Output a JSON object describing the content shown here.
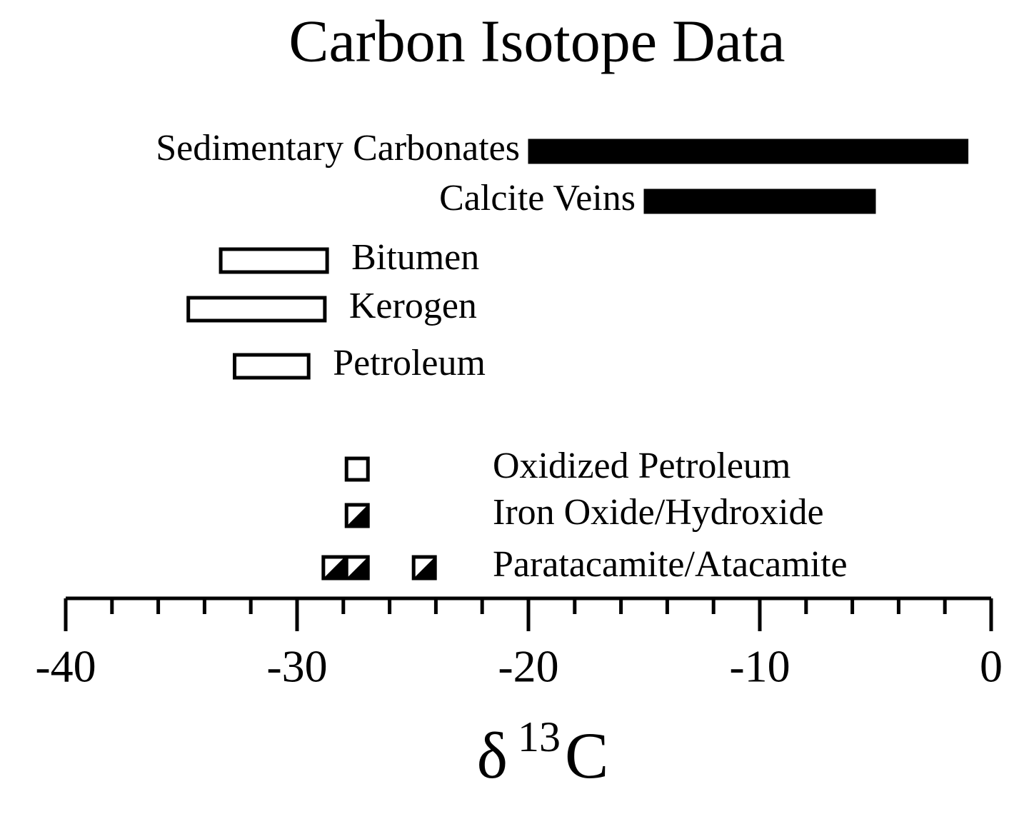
{
  "chart_data": {
    "type": "range",
    "title": "Carbon Isotope Data",
    "xlabel": [
      "δ",
      "13",
      "C"
    ],
    "xlim": [
      -40,
      0
    ],
    "xticks": [
      -40,
      -30,
      -20,
      -10,
      0
    ],
    "xminorticks": [
      -38,
      -36,
      -34,
      -32,
      -28,
      -26,
      -24,
      -22,
      -18,
      -16,
      -14,
      -12,
      -8,
      -6,
      -4,
      -2
    ],
    "ranges": [
      {
        "name": "Sedimentary Carbonates",
        "values": [
          -20,
          -1
        ],
        "fill": "#000000"
      },
      {
        "name": "Calcite Veins",
        "values": [
          -15,
          -5
        ],
        "fill": "#000000"
      },
      {
        "name": "Bitumen",
        "values": [
          -33.3,
          -28.7
        ],
        "fill": "none"
      },
      {
        "name": "Kerogen",
        "values": [
          -34.7,
          -28.8
        ],
        "fill": "none"
      },
      {
        "name": "Petroleum",
        "values": [
          -32.7,
          -29.5
        ],
        "fill": "none"
      }
    ],
    "points": [
      {
        "name": "Oxidized Petroleum",
        "values": [
          -27.4
        ],
        "marker": "open"
      },
      {
        "name": "Iron Oxide/Hydroxide",
        "values": [
          -27.4
        ],
        "marker": "half"
      },
      {
        "name": "Paratacamite/Atacamite",
        "values": [
          -28.4,
          -27.4,
          -24.5
        ],
        "marker": "half"
      }
    ]
  }
}
